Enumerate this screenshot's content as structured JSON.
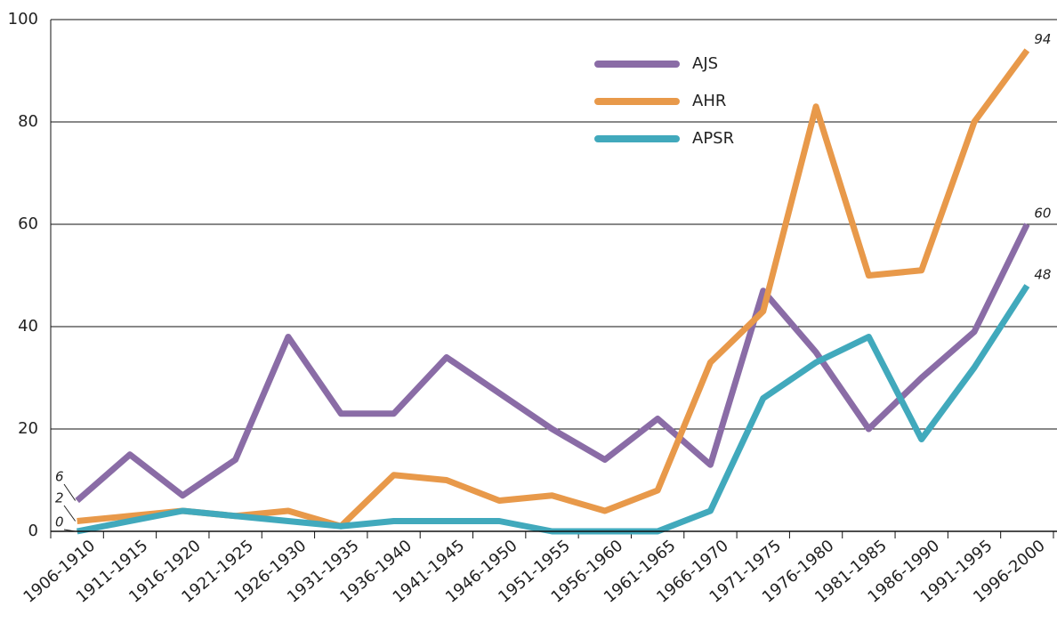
{
  "chart_data": {
    "type": "line",
    "categories": [
      "1906-1910",
      "1911-1915",
      "1916-1920",
      "1921-1925",
      "1926-1930",
      "1931-1935",
      "1936-1940",
      "1941-1945",
      "1946-1950",
      "1951-1955",
      "1956-1960",
      "1961-1965",
      "1966-1970",
      "1971-1975",
      "1976-1980",
      "1981-1985",
      "1986-1990",
      "1991-1995",
      "1996-2000"
    ],
    "series": [
      {
        "name": "AJS",
        "color": "#8a6ca6",
        "values": [
          6,
          15,
          7,
          14,
          38,
          23,
          23,
          34,
          27,
          20,
          14,
          22,
          13,
          47,
          35,
          20,
          30,
          39,
          60
        ]
      },
      {
        "name": "AHR",
        "color": "#e8994a",
        "values": [
          2,
          3,
          4,
          3,
          4,
          1,
          11,
          10,
          6,
          7,
          4,
          8,
          33,
          43,
          83,
          50,
          51,
          80,
          94
        ]
      },
      {
        "name": "APSR",
        "color": "#41a9bc",
        "values": [
          0,
          2,
          4,
          3,
          2,
          1,
          2,
          2,
          2,
          0,
          0,
          0,
          4,
          26,
          33,
          38,
          18,
          32,
          48
        ]
      }
    ],
    "ylim": [
      0,
      100
    ],
    "yticks": [
      0,
      20,
      40,
      60,
      80,
      100
    ],
    "grid": true,
    "legend": "top-right"
  }
}
